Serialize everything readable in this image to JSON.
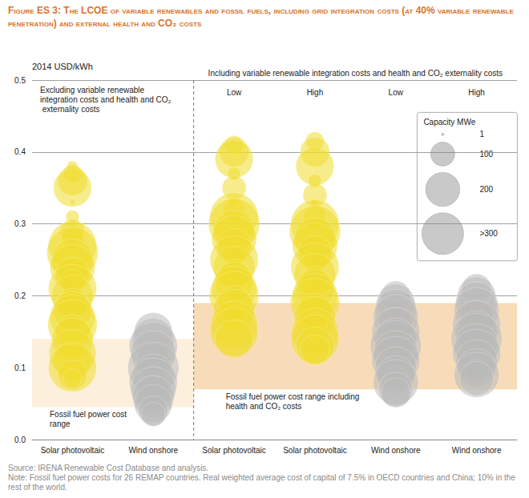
{
  "chart_data": {
    "type": "scatter",
    "title": "Figure ES 3: The LCOE of variable renewables and fossil fuels, including grid integration costs (at 40% variable renewable penetration) and external health and CO₂ costs",
    "ylabel": "2014 USD/kWh",
    "ylim": [
      0,
      0.5
    ],
    "yticks": [
      {
        "value": 0,
        "label": "0.0"
      },
      0.1,
      0.2,
      0.3,
      0.4,
      0.5
    ],
    "grid": true,
    "source": "Source: IRENA Renewable Cost Database and analysis.",
    "note": "Note: Fossil fuel power costs for 26 REMAP countries. Real weighted average cost of capital of 7.5% in OECD countries and China; 10% in the rest of the world.",
    "size_legend": {
      "title": "Capacity MWe",
      "values": [
        1,
        100,
        200,
        {
          "value": 300,
          "label": ">300"
        }
      ]
    },
    "panels": [
      {
        "title": "Excluding variable renewable integration costs and health and CO₂ externality costs",
        "band": {
          "label": "Fossil fuel power cost range",
          "range": [
            0.045,
            0.14
          ],
          "color": "#fcefdc"
        },
        "columns": [
          {
            "category": "Solar photovoltaic",
            "color": "#f0dc2e",
            "values": [
              0.38,
              0.37,
              0.36,
              0.35,
              0.33,
              0.31,
              0.3,
              0.29,
              0.28,
              0.27,
              0.26,
              0.25,
              0.24,
              0.23,
              0.22,
              0.21,
              0.2,
              0.19,
              0.18,
              0.17,
              0.16,
              0.15,
              0.14,
              0.13,
              0.12,
              0.11,
              0.1,
              0.09,
              0.085
            ],
            "capacity": [
              20,
              60,
              150,
              250,
              5,
              30,
              10,
              100,
              80,
              400,
              450,
              300,
              350,
              200,
              100,
              400,
              300,
              150,
              250,
              350,
              420,
              200,
              300,
              100,
              380,
              250,
              400,
              150,
              60
            ]
          },
          {
            "category": "Wind onshore",
            "color": "#b9b9b9",
            "values": [
              0.15,
              0.14,
              0.13,
              0.12,
              0.11,
              0.105,
              0.1,
              0.095,
              0.09,
              0.085,
              0.08,
              0.075,
              0.07,
              0.065,
              0.06,
              0.05,
              0.04,
              0.035
            ],
            "capacity": [
              250,
              300,
              400,
              350,
              200,
              10,
              450,
              30,
              300,
              100,
              400,
              5,
              350,
              200,
              300,
              250,
              150,
              100
            ]
          }
        ]
      },
      {
        "title": "Including variable renewable integration costs and health and CO₂ externality costs",
        "band": {
          "label": "Fossil fuel power cost range including health and CO₂ costs",
          "range": [
            0.07,
            0.19
          ],
          "color": "#f8dbb8"
        },
        "columns": [
          {
            "category": "Solar photovoltaic",
            "subtitle": "Low",
            "color": "#f0dc2e",
            "values": [
              0.41,
              0.4,
              0.39,
              0.37,
              0.35,
              0.33,
              0.32,
              0.31,
              0.3,
              0.29,
              0.28,
              0.27,
              0.26,
              0.25,
              0.24,
              0.23,
              0.22,
              0.21,
              0.2,
              0.19,
              0.18,
              0.17,
              0.16,
              0.15,
              0.14
            ],
            "capacity": [
              60,
              150,
              250,
              30,
              100,
              10,
              80,
              400,
              450,
              300,
              350,
              200,
              100,
              400,
              300,
              150,
              250,
              350,
              420,
              200,
              300,
              100,
              380,
              400,
              250
            ]
          },
          {
            "category": "Solar photovoltaic",
            "subtitle": "High",
            "color": "#f0dc2e",
            "values": [
              0.415,
              0.4,
              0.38,
              0.36,
              0.34,
              0.33,
              0.31,
              0.3,
              0.29,
              0.28,
              0.27,
              0.26,
              0.25,
              0.24,
              0.23,
              0.22,
              0.21,
              0.2,
              0.19,
              0.18,
              0.17,
              0.16,
              0.15,
              0.14,
              0.13,
              0.125
            ],
            "capacity": [
              60,
              150,
              250,
              30,
              100,
              10,
              80,
              400,
              450,
              300,
              350,
              200,
              100,
              400,
              300,
              150,
              250,
              350,
              420,
              200,
              300,
              100,
              380,
              400,
              250,
              150
            ]
          },
          {
            "category": "Wind onshore",
            "subtitle": "Low",
            "color": "#b9b9b9",
            "values": [
              0.2,
              0.19,
              0.18,
              0.17,
              0.16,
              0.15,
              0.14,
              0.13,
              0.12,
              0.115,
              0.11,
              0.105,
              0.1,
              0.095,
              0.09,
              0.085,
              0.08,
              0.07,
              0.065
            ],
            "capacity": [
              150,
              250,
              300,
              350,
              200,
              400,
              300,
              450,
              350,
              10,
              400,
              5,
              300,
              30,
              250,
              100,
              350,
              200,
              150
            ]
          },
          {
            "category": "Wind onshore",
            "subtitle": "High",
            "color": "#b9b9b9",
            "values": [
              0.21,
              0.2,
              0.19,
              0.18,
              0.17,
              0.16,
              0.15,
              0.14,
              0.13,
              0.125,
              0.12,
              0.115,
              0.11,
              0.105,
              0.1,
              0.095,
              0.09,
              0.085
            ],
            "capacity": [
              150,
              250,
              300,
              350,
              200,
              400,
              300,
              450,
              350,
              10,
              400,
              5,
              300,
              30,
              250,
              100,
              350,
              200
            ]
          }
        ]
      }
    ]
  }
}
